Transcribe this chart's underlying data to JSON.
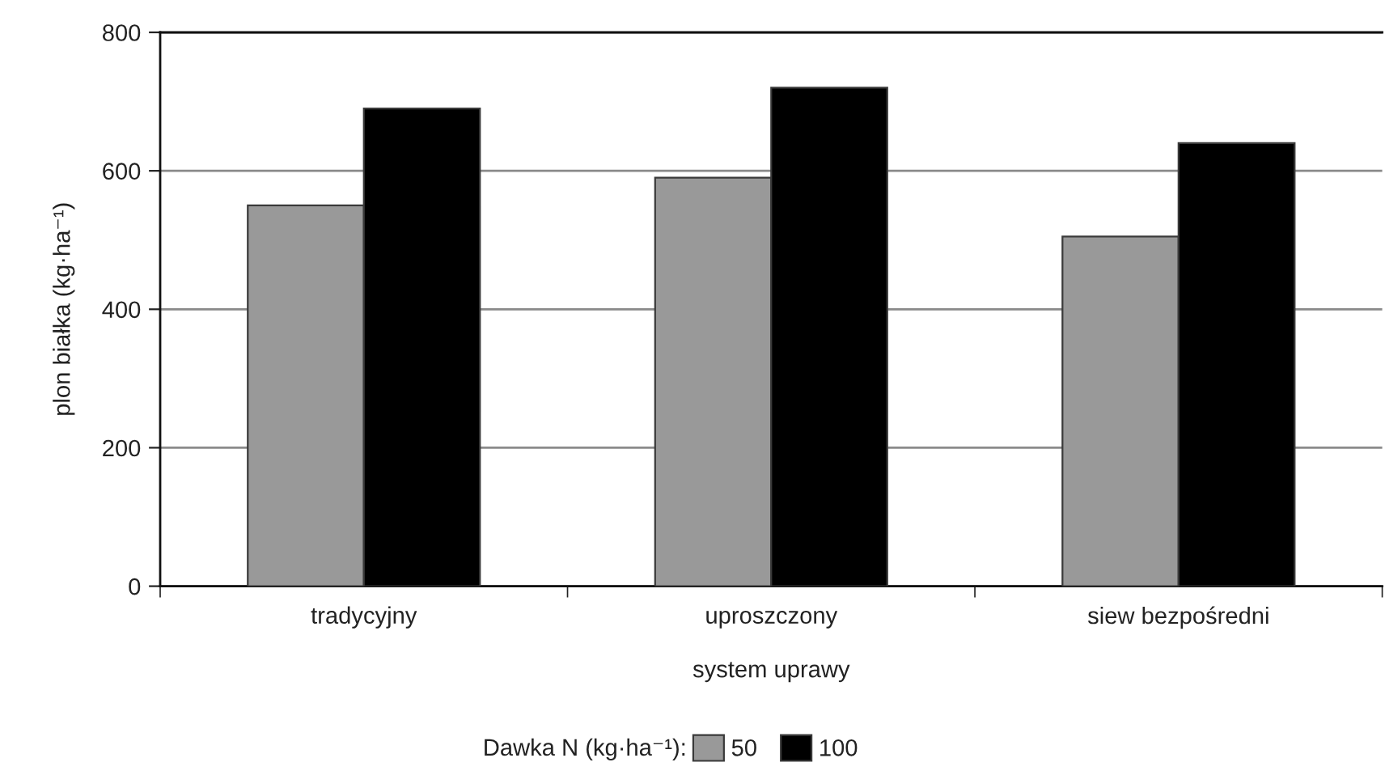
{
  "chart_data": {
    "type": "bar",
    "xlabel": "system uprawy",
    "ylabel": "plon białka (kg·ha⁻¹)",
    "categories": [
      "tradycyjny",
      "uproszczony",
      "siew bezpośredni"
    ],
    "series": [
      {
        "name": "50",
        "color": "#999999",
        "values": [
          550,
          590,
          505
        ]
      },
      {
        "name": "100",
        "color": "#000000",
        "values": [
          690,
          720,
          640
        ]
      }
    ],
    "ylim": [
      0,
      800
    ],
    "yticks": [
      0,
      200,
      400,
      600,
      800
    ],
    "grid": "y",
    "legend": "bottom",
    "legend_title": "Dawka N (kg·ha⁻¹):"
  }
}
